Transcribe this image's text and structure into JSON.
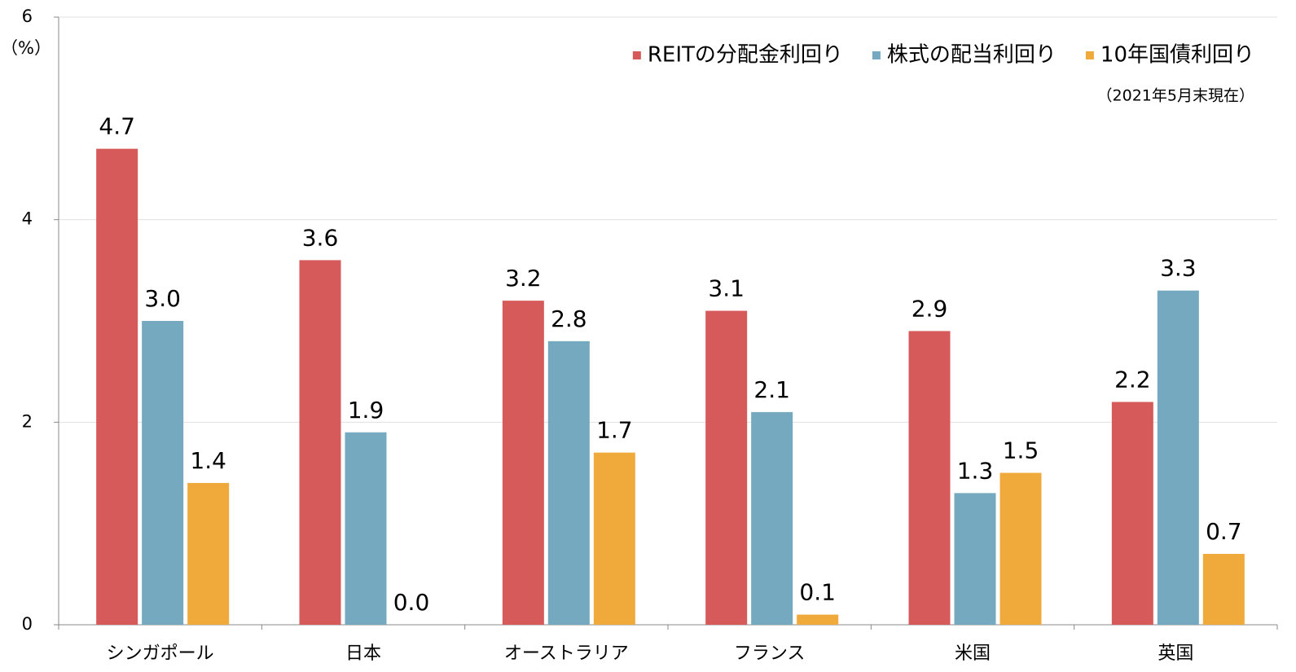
{
  "chart_data": {
    "type": "bar",
    "y_axis_label": "（%）",
    "annotation": "（2021年5月末現在）",
    "categories": [
      "シンガポール",
      "日本",
      "オーストラリア",
      "フランス",
      "米国",
      "英国"
    ],
    "series": [
      {
        "name": "REITの分配金利回り",
        "color": "#d65a5a",
        "values": [
          4.7,
          3.6,
          3.2,
          3.1,
          2.9,
          2.2
        ],
        "value_labels": [
          "4.7",
          "3.6",
          "3.2",
          "3.1",
          "2.9",
          "2.2"
        ]
      },
      {
        "name": "株式の配当利回り",
        "color": "#74a9c0",
        "values": [
          3.0,
          1.9,
          2.8,
          2.1,
          1.3,
          3.3
        ],
        "value_labels": [
          "3.0",
          "1.9",
          "2.8",
          "2.1",
          "1.3",
          "3.3"
        ]
      },
      {
        "name": "10年国債利回り",
        "color": "#f0aa3c",
        "values": [
          1.4,
          0.0,
          1.7,
          0.1,
          1.5,
          0.7
        ],
        "value_labels": [
          "1.4",
          "0.0",
          "1.7",
          "0.1",
          "1.5",
          "0.7"
        ]
      }
    ],
    "ylim": [
      0,
      6
    ],
    "yticks": [
      0,
      2,
      4,
      6
    ],
    "grid": true,
    "legend": "top-right"
  }
}
